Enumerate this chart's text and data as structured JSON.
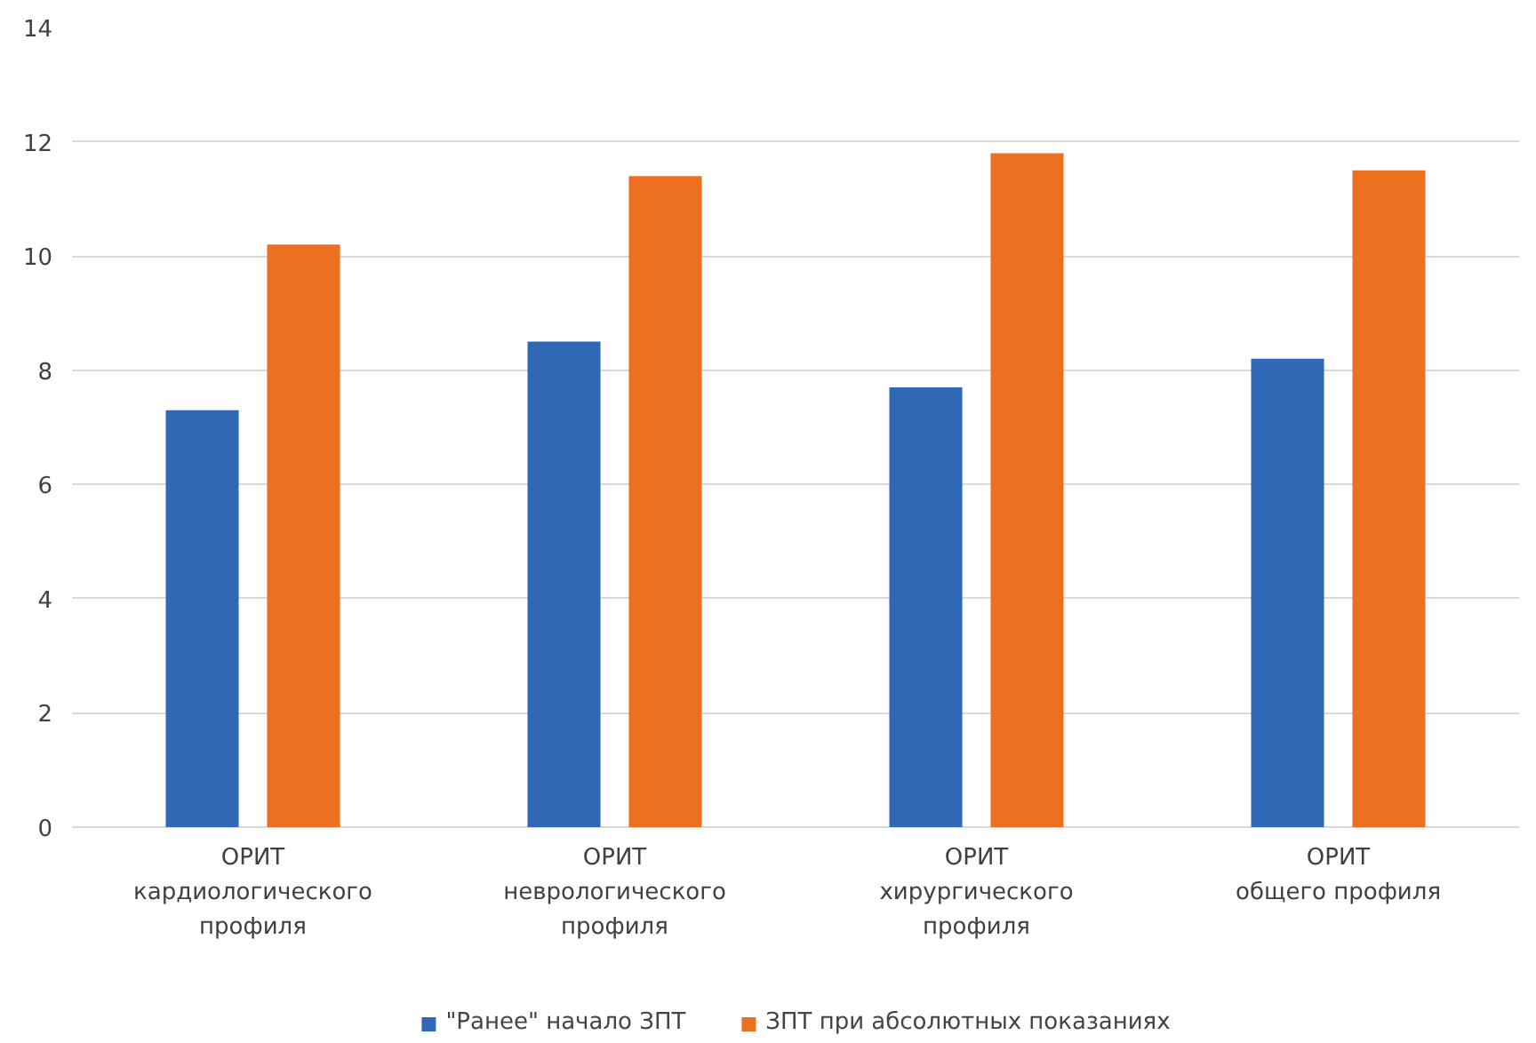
{
  "chart_data": {
    "type": "bar",
    "categories": [
      "ОРИТ кардиологического профиля",
      "ОРИТ неврологического профиля",
      "ОРИТ хирургического профиля",
      "ОРИТ общего профиля"
    ],
    "series": [
      {
        "name": "\"Ранее\" начало ЗПТ",
        "color": "#2f68b4",
        "values": [
          7.3,
          8.5,
          7.7,
          8.2
        ]
      },
      {
        "name": "ЗПТ при абсолютных показаниях",
        "color": "#ed7020",
        "values": [
          10.2,
          11.4,
          11.8,
          11.5
        ]
      }
    ],
    "ylim": [
      0,
      14
    ],
    "yticks": [
      0,
      2,
      4,
      6,
      8,
      10,
      12,
      14
    ],
    "grid": "y",
    "legend": "bottom"
  }
}
